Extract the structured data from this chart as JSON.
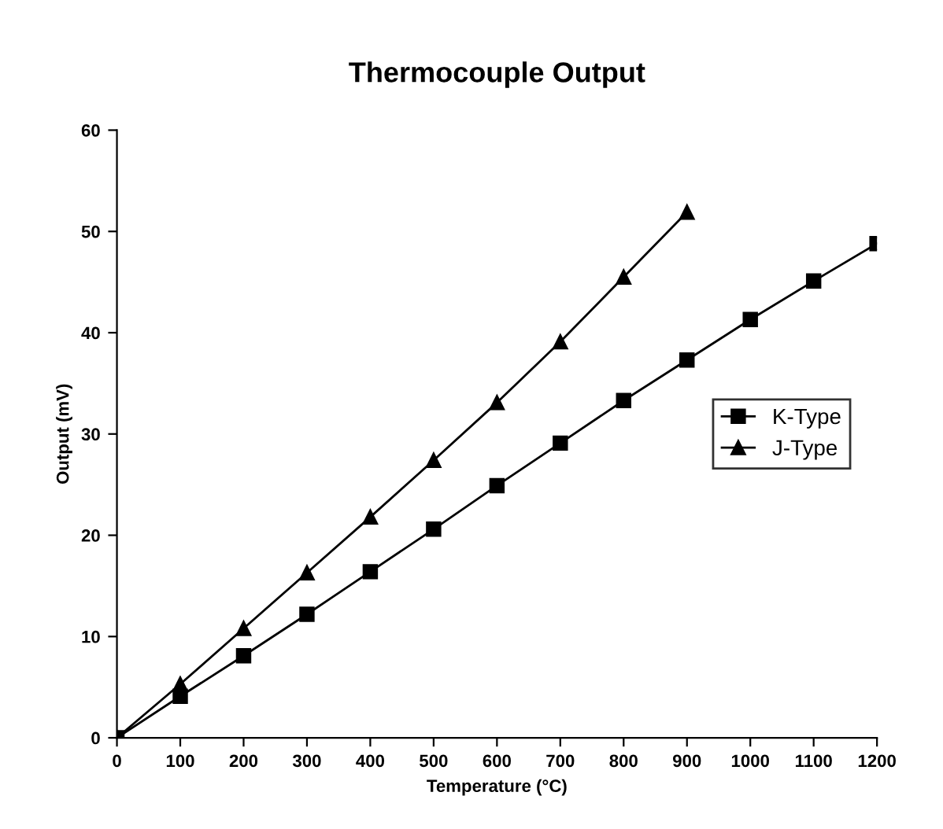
{
  "chart_data": {
    "type": "line",
    "title": "Thermocouple Output",
    "xlabel": "Temperature (°C)",
    "ylabel": "Output (mV)",
    "xlim": [
      0,
      1200
    ],
    "xticks": [
      0,
      100,
      200,
      300,
      400,
      500,
      600,
      700,
      800,
      900,
      1000,
      1100,
      1200
    ],
    "ylim": [
      0,
      60
    ],
    "yticks": [
      0,
      10,
      20,
      30,
      40,
      50,
      60
    ],
    "grid": false,
    "legend": "right",
    "line_style": "solid",
    "series": [
      {
        "name": "K-Type",
        "color": "#000000",
        "marker": "square",
        "x": [
          0,
          100,
          200,
          300,
          400,
          500,
          600,
          700,
          800,
          900,
          1000,
          1100,
          1200
        ],
        "values": [
          0,
          4.1,
          8.1,
          12.2,
          16.4,
          20.6,
          24.9,
          29.1,
          33.3,
          37.3,
          41.3,
          45.1,
          48.8
        ]
      },
      {
        "name": "J-Type",
        "color": "#000000",
        "marker": "triangle",
        "x": [
          0,
          100,
          200,
          300,
          400,
          500,
          600,
          700,
          800,
          900
        ],
        "values": [
          0,
          5.3,
          10.8,
          16.3,
          21.8,
          27.4,
          33.1,
          39.1,
          45.5,
          51.9
        ]
      }
    ]
  }
}
